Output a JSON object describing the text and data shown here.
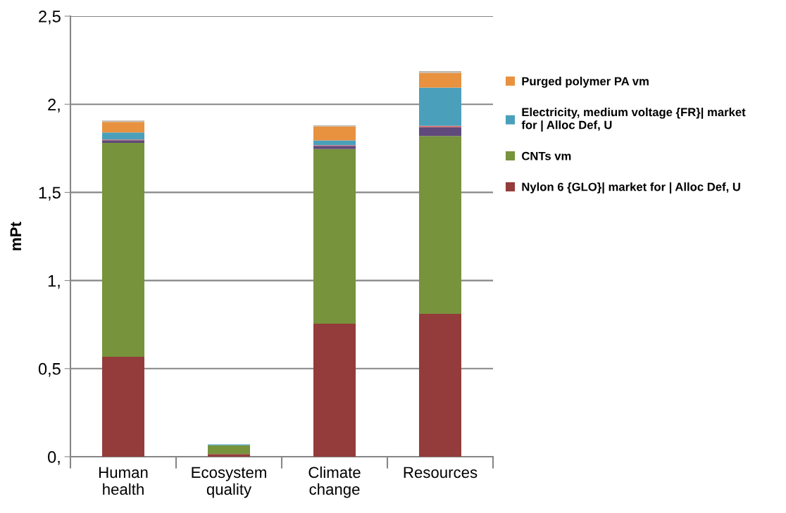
{
  "chart_data": {
    "type": "bar",
    "stacked": true,
    "ylabel": "mPt",
    "categories": [
      "Human\nhealth",
      "Ecosystem\nquality",
      "Climate\nchange",
      "Resources"
    ],
    "series": [
      {
        "name": "Nylon 6 {GLO}| market for | Alloc Def, U",
        "color": "#943c3b",
        "values": [
          0.567,
          0.015,
          0.755,
          0.811
        ]
      },
      {
        "name": "CNTs vm",
        "color": "#77933c",
        "values": [
          1.214,
          0.05,
          0.991,
          1.009
        ]
      },
      {
        "color": "#604a7b",
        "values": [
          0.015,
          null,
          0.018,
          0.05
        ]
      },
      {
        "color": "#d36c6c",
        "values": [
          0.004,
          null,
          0.004,
          0.008
        ]
      },
      {
        "name": "Electricity, medium voltage {FR}| market\nfor | Alloc Def, U",
        "color": "#4aa0bb",
        "values": [
          0.04,
          0.005,
          0.027,
          0.217
        ]
      },
      {
        "name": "Purged polymer PA vm",
        "color": "#e8913f",
        "values": [
          0.06,
          null,
          0.079,
          0.084
        ]
      },
      {
        "color": "#c0b8b0",
        "values": [
          0.008,
          null,
          0.007,
          0.009
        ]
      }
    ],
    "ylim": [
      0,
      2.5
    ],
    "yticks": [
      {
        "value": 0,
        "label": "0,"
      },
      {
        "value": 0.5,
        "label": "0,5"
      },
      {
        "value": 1,
        "label": "1,"
      },
      {
        "value": 1.5,
        "label": "1,5"
      },
      {
        "value": 2,
        "label": "2,"
      },
      {
        "value": 2.5,
        "label": "2,5"
      }
    ],
    "grid": "y",
    "legend": "right"
  }
}
